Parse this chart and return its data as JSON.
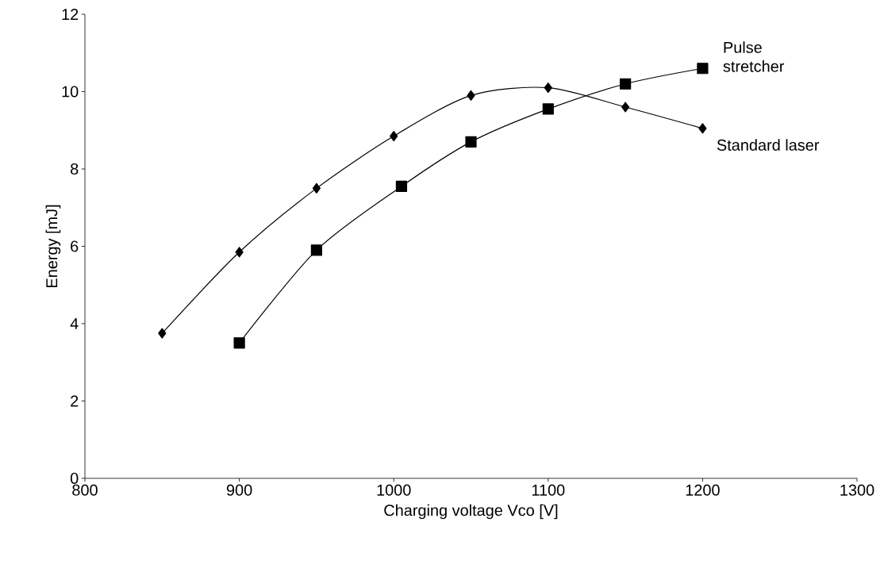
{
  "chart_data": {
    "type": "line",
    "xlabel": "Charging voltage Vco [V]",
    "ylabel": "Energy [mJ]",
    "xlim": [
      800,
      1300
    ],
    "xticks": [
      800,
      900,
      1000,
      1100,
      1200,
      1300
    ],
    "ylim": [
      0,
      12
    ],
    "yticks": [
      0,
      2,
      4,
      6,
      8,
      10,
      12
    ],
    "grid": false,
    "legend": false,
    "series": [
      {
        "name": "Standard laser",
        "color": "#000000",
        "marker": "diamond",
        "x": [
          850,
          900,
          950,
          1000,
          1050,
          1100,
          1150,
          1200
        ],
        "values": [
          3.75,
          5.85,
          7.5,
          8.85,
          9.9,
          10.1,
          9.6,
          9.05
        ]
      },
      {
        "name": "Pulse stretcher",
        "color": "#000000",
        "marker": "square",
        "x": [
          900,
          950,
          1005,
          1050,
          1100,
          1150,
          1200
        ],
        "values": [
          3.5,
          5.9,
          7.55,
          8.7,
          9.55,
          10.2,
          10.6
        ]
      }
    ]
  }
}
